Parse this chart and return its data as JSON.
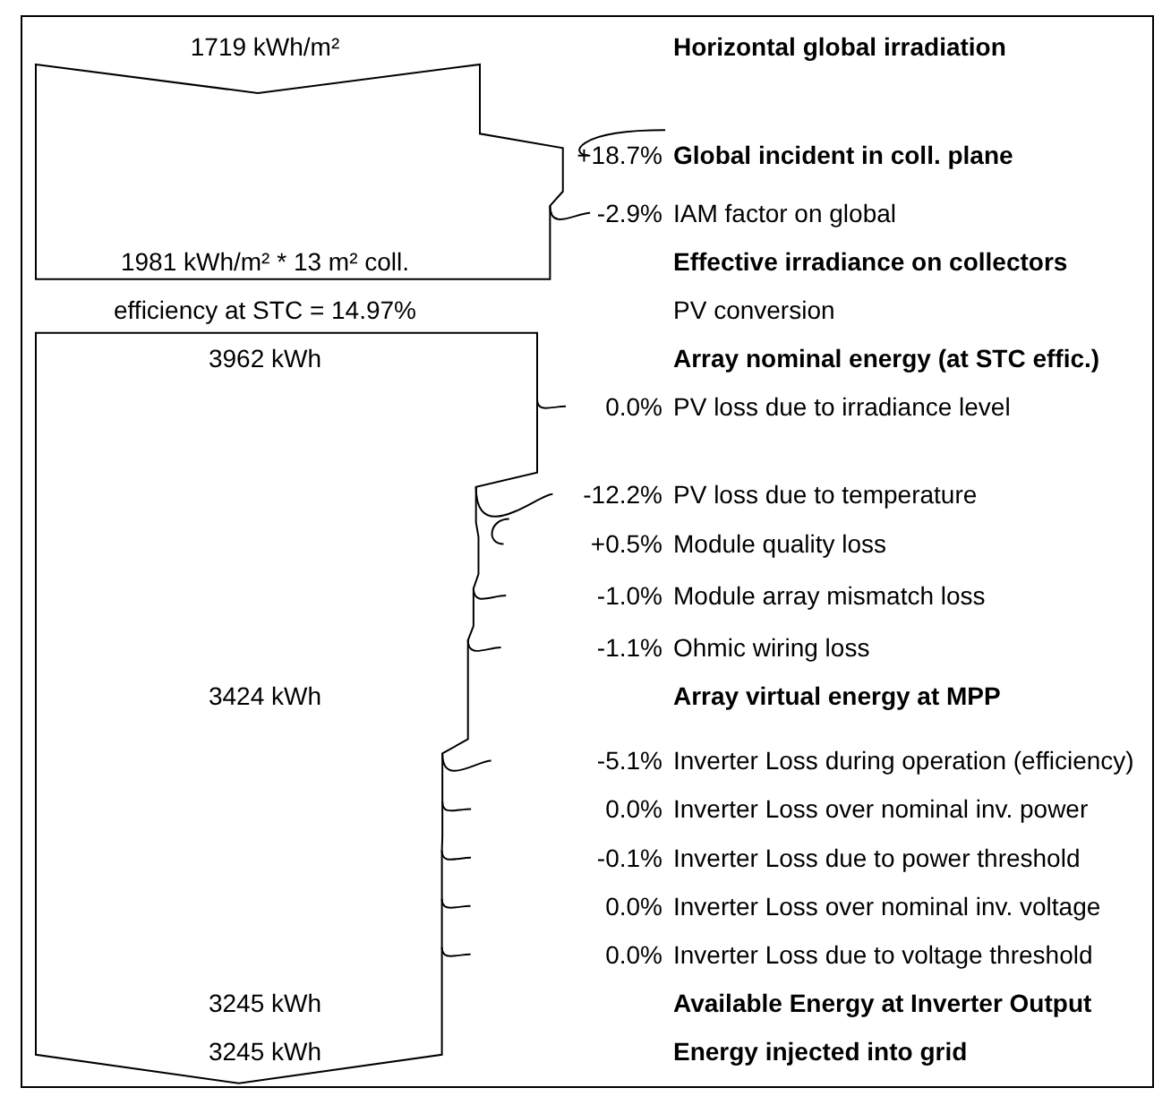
{
  "chart_data": {
    "type": "other",
    "categories": [
      "Horizontal global irradiation",
      "Global incident in coll. plane",
      "IAM factor on global",
      "Effective irradiance on collectors",
      "PV conversion",
      "Array nominal energy (at STC effic.)",
      "PV loss due to irradiance level",
      "PV loss due to temperature",
      "Module quality loss",
      "Module array mismatch loss",
      "Ohmic wiring loss",
      "Array virtual energy at MPP",
      "Inverter Loss during operation (efficiency)",
      "Inverter Loss over nominal inv. power",
      "Inverter Loss due to power threshold",
      "Inverter Loss over nominal inv. voltage",
      "Inverter Loss due to voltage threshold",
      "Available Energy at Inverter Output",
      "Energy injected into grid"
    ],
    "values": [
      null,
      18.7,
      -2.9,
      null,
      null,
      null,
      0.0,
      -12.2,
      0.5,
      -1.0,
      -1.1,
      null,
      -5.1,
      0.0,
      -0.1,
      0.0,
      0.0,
      null,
      null
    ],
    "value_labels": [
      null,
      "+18.7%",
      "-2.9%",
      null,
      null,
      null,
      "0.0%",
      "-12.2%",
      "+0.5%",
      "-1.0%",
      "-1.1%",
      null,
      "-5.1%",
      "0.0%",
      "-0.1%",
      "0.0%",
      "0.0%",
      null,
      null
    ],
    "annotations": [
      "1719 kWh/m²",
      "1981 kWh/m² * 13 m² coll.",
      "efficiency at STC = 14.97%",
      "3962 kWh",
      "3424 kWh",
      "3245 kWh",
      "3245 kWh"
    ]
  }
}
